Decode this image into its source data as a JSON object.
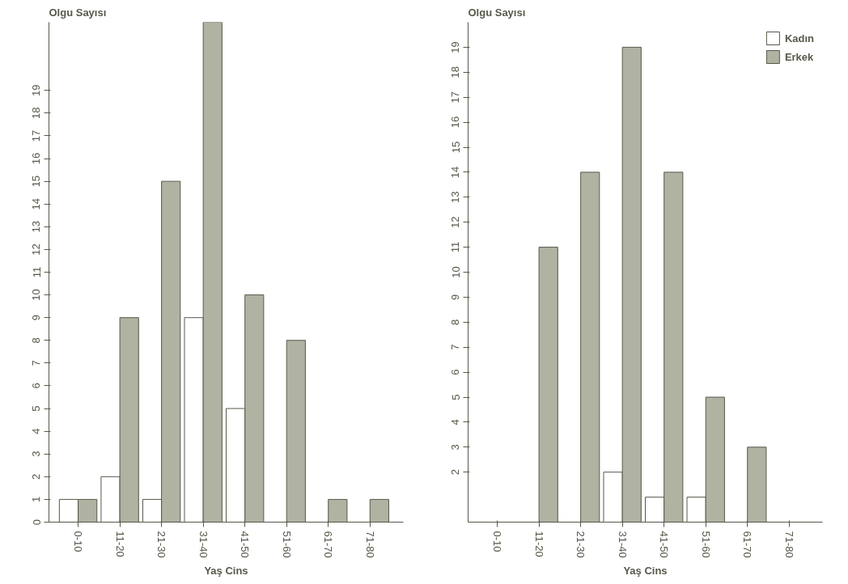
{
  "chart_data": [
    {
      "type": "bar",
      "ylabel": "Olgu Sayısı",
      "xlabel": "Yaş Cins",
      "categories": [
        "0-10",
        "11-20",
        "21-30",
        "31-40",
        "41-50",
        "51-60",
        "61-70",
        "71-80"
      ],
      "series": [
        {
          "color": "#ffffff",
          "values": [
            1,
            2,
            1,
            9,
            5,
            0,
            0,
            0
          ]
        },
        {
          "color": "#b0b2a2",
          "values": [
            1,
            9,
            15,
            22,
            10,
            8,
            1,
            1
          ]
        }
      ],
      "ylim": [
        0,
        22
      ],
      "yticks": [
        0,
        1,
        2,
        3,
        4,
        5,
        6,
        7,
        8,
        9,
        10,
        11,
        12,
        13,
        14,
        15,
        16,
        17,
        18,
        19
      ],
      "grid": false,
      "legend": false
    },
    {
      "type": "bar",
      "ylabel": "Olgu Sayısı",
      "xlabel": "Yaş Cins",
      "categories": [
        "0-10",
        "11-20",
        "21-30",
        "31-40",
        "41-50",
        "51-60",
        "61-70",
        "71-80"
      ],
      "series": [
        {
          "name": "Kadın",
          "color": "#ffffff",
          "values": [
            0,
            0,
            0,
            2,
            1,
            1,
            0,
            0
          ]
        },
        {
          "name": "Erkek",
          "color": "#b0b2a2",
          "values": [
            0,
            11,
            14,
            19,
            14,
            5,
            3,
            0
          ]
        }
      ],
      "ylim": [
        0,
        20
      ],
      "yticks": [
        2,
        3,
        4,
        5,
        6,
        7,
        8,
        9,
        10,
        11,
        12,
        13,
        14,
        15,
        16,
        17,
        18,
        19
      ],
      "grid": false,
      "legend": "top right"
    }
  ]
}
